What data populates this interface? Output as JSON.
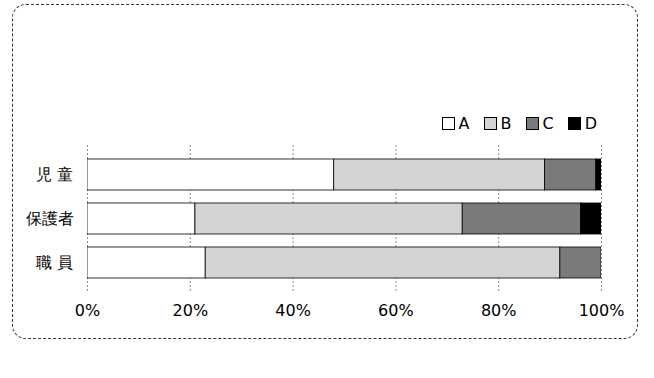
{
  "chart_data": {
    "type": "bar",
    "orientation": "horizontal",
    "stacked": true,
    "categories": [
      "児 童",
      "保護者",
      "職 員"
    ],
    "series": [
      {
        "name": "A",
        "color": "#ffffff",
        "values": [
          48,
          21,
          23
        ]
      },
      {
        "name": "B",
        "color": "#d4d4d4",
        "values": [
          41,
          52,
          69
        ]
      },
      {
        "name": "C",
        "color": "#7a7a7a",
        "values": [
          10,
          23,
          8
        ]
      },
      {
        "name": "D",
        "color": "#000000",
        "values": [
          1,
          4,
          0
        ]
      }
    ],
    "xlim": [
      0,
      100
    ],
    "xticks": [
      {
        "value": 0,
        "label": "0%"
      },
      {
        "value": 20,
        "label": "20%"
      },
      {
        "value": 40,
        "label": "40%"
      },
      {
        "value": 60,
        "label": "60%"
      },
      {
        "value": 80,
        "label": "80%"
      },
      {
        "value": 100,
        "label": "100%"
      }
    ],
    "grid": true,
    "legend": "top-right"
  }
}
